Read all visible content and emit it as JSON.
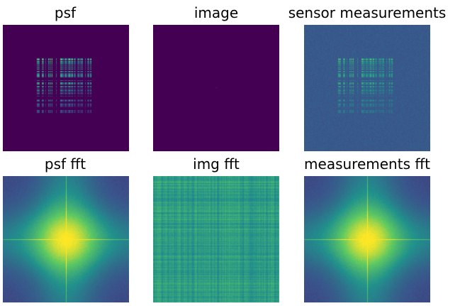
{
  "panels": [
    {
      "id": "psf",
      "title": "psf",
      "kind": "psf"
    },
    {
      "id": "image",
      "title": "image",
      "kind": "image"
    },
    {
      "id": "sensor",
      "title": "sensor measurements",
      "kind": "sensor"
    },
    {
      "id": "psf_fft",
      "title": "psf fft",
      "kind": "fft"
    },
    {
      "id": "img_fft",
      "title": "img fft",
      "kind": "imgfft"
    },
    {
      "id": "meas_fft",
      "title": "measurements fft",
      "kind": "fft"
    }
  ],
  "colormap": "viridis",
  "colors": {
    "viridis_dark": "#440154",
    "viridis_blue": "#3b528b",
    "viridis_teal": "#21918c",
    "viridis_green": "#5ec962",
    "viridis_yellow": "#fde725"
  }
}
